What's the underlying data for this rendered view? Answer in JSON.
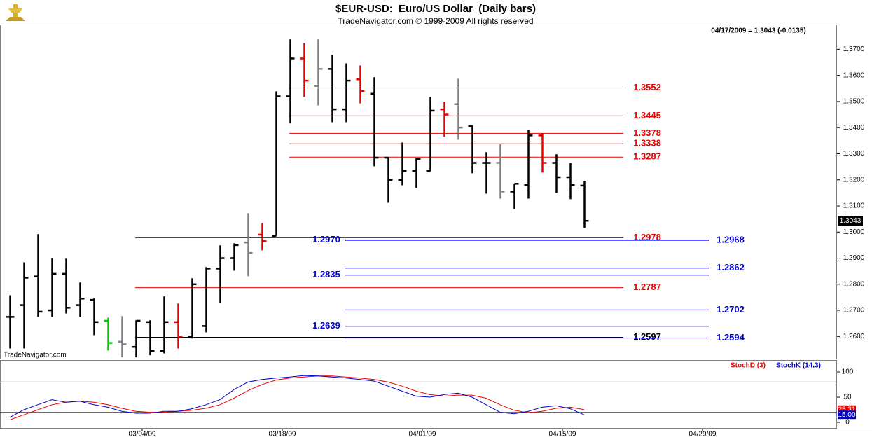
{
  "header": {
    "title": "$EUR-USD:  Euro/US Dollar  (Daily bars)",
    "subtitle": "TradeNavigator.com © 1999-2009 All rights reserved",
    "quote": "04/17/2009 = 1.3043 (-0.0135)",
    "watermark": "TradeNavigator.com"
  },
  "chart_data": [
    {
      "type": "ohlc",
      "open": [
        1.2675,
        1.272,
        1.283,
        1.27,
        1.284,
        1.272,
        1.274,
        1.266,
        1.258,
        1.256,
        1.2655,
        1.2545,
        1.2655,
        1.26,
        1.264,
        1.286,
        1.29,
        1.296,
        1.299,
        1.2985,
        1.352,
        1.3665,
        1.356,
        1.3625,
        1.347,
        1.3585,
        1.353,
        1.3285,
        1.32,
        1.3235,
        1.3235,
        1.347,
        1.349,
        1.3405,
        1.3265,
        1.3265,
        1.3155,
        1.318,
        1.337,
        1.3265,
        1.321,
        1.3178
      ],
      "high": [
        1.2758,
        1.2884,
        1.2992,
        1.29,
        1.2898,
        1.2807,
        1.2747,
        1.2672,
        1.2678,
        1.2662,
        1.2662,
        1.2753,
        1.2726,
        1.2823,
        1.2866,
        1.2949,
        1.2957,
        1.3072,
        1.3035,
        1.3539,
        1.3738,
        1.3724,
        1.3738,
        1.3679,
        1.3646,
        1.3638,
        1.3593,
        1.3287,
        1.3343,
        1.3284,
        1.3518,
        1.3499,
        1.3587,
        1.3408,
        1.3306,
        1.3338,
        1.3185,
        1.3391,
        1.3378,
        1.3298,
        1.3265,
        1.3196
      ],
      "low": [
        1.2554,
        1.2554,
        1.2675,
        1.2675,
        1.2688,
        1.2675,
        1.2605,
        1.2546,
        1.252,
        1.252,
        1.2528,
        1.2535,
        1.2554,
        1.2592,
        1.2616,
        1.2729,
        1.2852,
        1.2831,
        1.293,
        1.2986,
        1.3416,
        1.3518,
        1.3485,
        1.3421,
        1.3421,
        1.3493,
        1.3252,
        1.3112,
        1.3179,
        1.3169,
        1.3233,
        1.3365,
        1.3354,
        1.3225,
        1.3147,
        1.3128,
        1.3088,
        1.3128,
        1.3228,
        1.315,
        1.3126,
        1.3016
      ],
      "close": [
        1.2675,
        1.2825,
        1.2695,
        1.284,
        1.271,
        1.2745,
        1.2655,
        1.2575,
        1.257,
        1.266,
        1.2545,
        1.2655,
        1.26,
        1.28,
        1.286,
        1.29,
        1.295,
        1.292,
        1.2965,
        1.352,
        1.3665,
        1.358,
        1.3625,
        1.347,
        1.358,
        1.354,
        1.3285,
        1.32,
        1.3235,
        1.328,
        1.3465,
        1.345,
        1.34,
        1.3265,
        1.3265,
        1.3155,
        1.3185,
        1.337,
        1.3265,
        1.321,
        1.318,
        1.3043
      ],
      "colors": [
        "#000000",
        "#000000",
        "#000000",
        "#000000",
        "#000000",
        "#000000",
        "#000000",
        "#00cc00",
        "#808080",
        "#000000",
        "#000000",
        "#000000",
        "#ee0000",
        "#000000",
        "#000000",
        "#000000",
        "#000000",
        "#808080",
        "#ee0000",
        "#000000",
        "#000000",
        "#ee0000",
        "#808080",
        "#000000",
        "#000000",
        "#ee0000",
        "#000000",
        "#000000",
        "#000000",
        "#000000",
        "#000000",
        "#ee0000",
        "#808080",
        "#000000",
        "#000000",
        "#808080",
        "#000000",
        "#000000",
        "#ee0000",
        "#000000",
        "#000000",
        "#000000"
      ],
      "last_label": "1.3043",
      "xlim": [
        -0.7,
        59.05
      ],
      "ylim": [
        1.2515,
        1.3795
      ],
      "yticks": [
        {
          "value": 1.26,
          "label": "1.2600"
        },
        {
          "value": 1.27,
          "label": "1.2700"
        },
        {
          "value": 1.28,
          "label": "1.2800"
        },
        {
          "value": 1.29,
          "label": "1.2900"
        },
        {
          "value": 1.3,
          "label": "1.3000"
        },
        {
          "value": 1.31,
          "label": "1.3100"
        },
        {
          "value": 1.32,
          "label": "1.3200"
        },
        {
          "value": 1.33,
          "label": "1.3300"
        },
        {
          "value": 1.34,
          "label": "1.3400"
        },
        {
          "value": 1.35,
          "label": "1.3500"
        },
        {
          "value": 1.36,
          "label": "1.3600"
        },
        {
          "value": 1.37,
          "label": "1.3700"
        }
      ],
      "levels_upper": [
        {
          "value": 1.3552,
          "label": "1.3552",
          "color": "#ee0000"
        },
        {
          "value": 1.3445,
          "label": "1.3445",
          "color": "#ee0000"
        },
        {
          "value": 1.3378,
          "label": "1.3378",
          "color": "#ee0000"
        },
        {
          "value": 1.3338,
          "label": "1.3338",
          "color": "#ee0000"
        },
        {
          "value": 1.3287,
          "label": "1.3287",
          "color": "#ee0000"
        }
      ],
      "levels_lower": [
        {
          "value": 1.2978,
          "label": "1.2978",
          "color": "#ee0000"
        },
        {
          "value": 1.2787,
          "label": "1.2787",
          "color": "#ee0000"
        },
        {
          "value": 1.2597,
          "label": "1.2597",
          "color": "#000000"
        }
      ],
      "levels_blue_left": [
        {
          "value": 1.297,
          "label": "1.2970",
          "color": "#0000cc"
        },
        {
          "value": 1.2835,
          "label": "1.2835",
          "color": "#0000cc"
        },
        {
          "value": 1.2639,
          "label": "1.2639",
          "color": "#0000cc"
        }
      ],
      "levels_blue_right": [
        {
          "value": 1.2968,
          "label": "1.2968",
          "color": "#0000cc"
        },
        {
          "value": 1.2862,
          "label": "1.2862",
          "color": "#0000cc"
        },
        {
          "value": 1.2702,
          "label": "1.2702",
          "color": "#0000cc"
        },
        {
          "value": 1.2594,
          "label": "1.2594",
          "color": "#0000cc"
        }
      ]
    },
    {
      "type": "line",
      "series": [
        {
          "name": "StochD (3)",
          "color": "#ee0000",
          "values": [
            5,
            15,
            25,
            35,
            40,
            42,
            40,
            35,
            28,
            22,
            20,
            20,
            22,
            24,
            28,
            35,
            48,
            63,
            75,
            84,
            88,
            90,
            92,
            92,
            90,
            88,
            85,
            80,
            72,
            62,
            55,
            52,
            54,
            54,
            48,
            35,
            24,
            19,
            22,
            28,
            30,
            25.31
          ],
          "value_labels": [
            null,
            null,
            null,
            null,
            null,
            null,
            null,
            null,
            null,
            null,
            null,
            null,
            null,
            null,
            null,
            null,
            null,
            null,
            null,
            null,
            null,
            null,
            null,
            null,
            null,
            null,
            null,
            null,
            null,
            null,
            null,
            null,
            null,
            null,
            null,
            null,
            null,
            null,
            null,
            null,
            null,
            "25.31"
          ]
        },
        {
          "name": "StochK (14,3)",
          "color": "#0000cc",
          "values": [
            10,
            25,
            35,
            45,
            40,
            42,
            35,
            30,
            22,
            18,
            18,
            22,
            22,
            27,
            35,
            45,
            65,
            80,
            85,
            88,
            90,
            93,
            92,
            90,
            88,
            85,
            82,
            72,
            62,
            52,
            50,
            55,
            58,
            50,
            35,
            20,
            17,
            22,
            30,
            33,
            27,
            15
          ],
          "value_labels": [
            null,
            null,
            null,
            null,
            null,
            null,
            null,
            null,
            null,
            null,
            null,
            null,
            null,
            null,
            null,
            null,
            null,
            null,
            null,
            null,
            null,
            null,
            null,
            null,
            null,
            null,
            null,
            null,
            null,
            null,
            null,
            null,
            null,
            null,
            null,
            null,
            null,
            null,
            null,
            null,
            null,
            "15.00"
          ]
        }
      ],
      "xlim": [
        -0.7,
        59.05
      ],
      "xticks": [
        {
          "value": 9,
          "label": "03/04/09"
        },
        {
          "value": 19,
          "label": "03/18/09"
        },
        {
          "value": 29,
          "label": "04/01/09"
        },
        {
          "value": 39,
          "label": "04/15/09"
        },
        {
          "value": 49,
          "label": "04/29/09"
        }
      ],
      "ylim": [
        -12.5,
        119.5
      ],
      "yticks": [
        0,
        50,
        100
      ],
      "levels": [
        20,
        80
      ]
    }
  ]
}
